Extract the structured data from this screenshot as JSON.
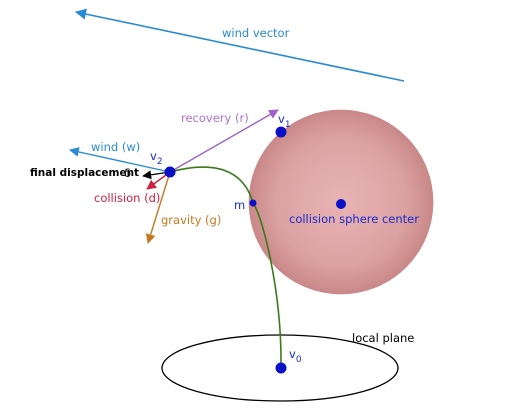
{
  "labels": {
    "wind_vector": "wind vector",
    "recovery": "recovery (r)",
    "wind": "wind (w)",
    "final_displacement": "final displacement",
    "delta_symbol": "δ",
    "collision": "collision (d)",
    "gravity": "gravity (g)",
    "collision_sphere_center": "collision sphere center",
    "m": "m",
    "local_plane": "local plane"
  },
  "points": {
    "v0": {
      "letter": "v",
      "sub": "0"
    },
    "v1": {
      "letter": "v",
      "sub": "1"
    },
    "v2": {
      "letter": "v",
      "sub": "2"
    }
  },
  "colors": {
    "wind": "#2a8ad4",
    "recovery": "#a060c8",
    "collision": "#d22040",
    "gravity": "#c87820",
    "final_displacement": "#000000",
    "curve": "#3a7a1a",
    "point": "#0a10c8",
    "sphere_edge": "#d49a9a",
    "sphere_center_fill": "#eab3b3",
    "label_blue": "#1a2acc"
  }
}
